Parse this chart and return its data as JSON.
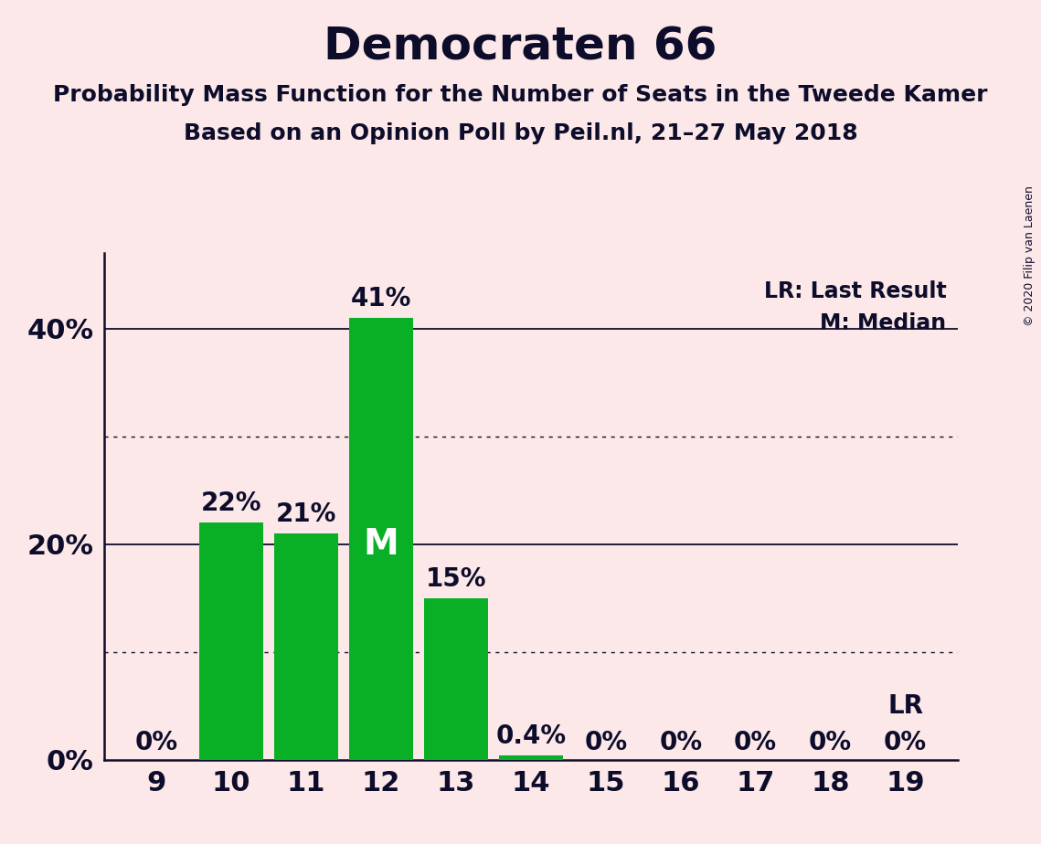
{
  "title": "Democraten 66",
  "subtitle1": "Probability Mass Function for the Number of Seats in the Tweede Kamer",
  "subtitle2": "Based on an Opinion Poll by Peil.nl, 21–27 May 2018",
  "copyright": "© 2020 Filip van Laenen",
  "seats": [
    9,
    10,
    11,
    12,
    13,
    14,
    15,
    16,
    17,
    18,
    19
  ],
  "probabilities": [
    0.0,
    0.22,
    0.21,
    0.41,
    0.15,
    0.004,
    0.0,
    0.0,
    0.0,
    0.0,
    0.0
  ],
  "bar_labels": [
    "0%",
    "22%",
    "21%",
    "41%",
    "15%",
    "0.4%",
    "0%",
    "0%",
    "0%",
    "0%",
    "0%"
  ],
  "bar_color": "#09b026",
  "background_color": "#fce8e8",
  "text_color": "#0d0d2b",
  "median_seat": 12,
  "last_result_seat": 19,
  "legend_lr": "LR: Last Result",
  "legend_m": "M: Median",
  "yticks": [
    0.0,
    0.2,
    0.4
  ],
  "ytick_labels": [
    "0%",
    "20%",
    "40%"
  ],
  "ylim": [
    0,
    0.47
  ],
  "dotted_lines": [
    0.1,
    0.3
  ],
  "title_fontsize": 36,
  "subtitle_fontsize": 18,
  "tick_fontsize": 22,
  "bar_label_fontsize": 20
}
